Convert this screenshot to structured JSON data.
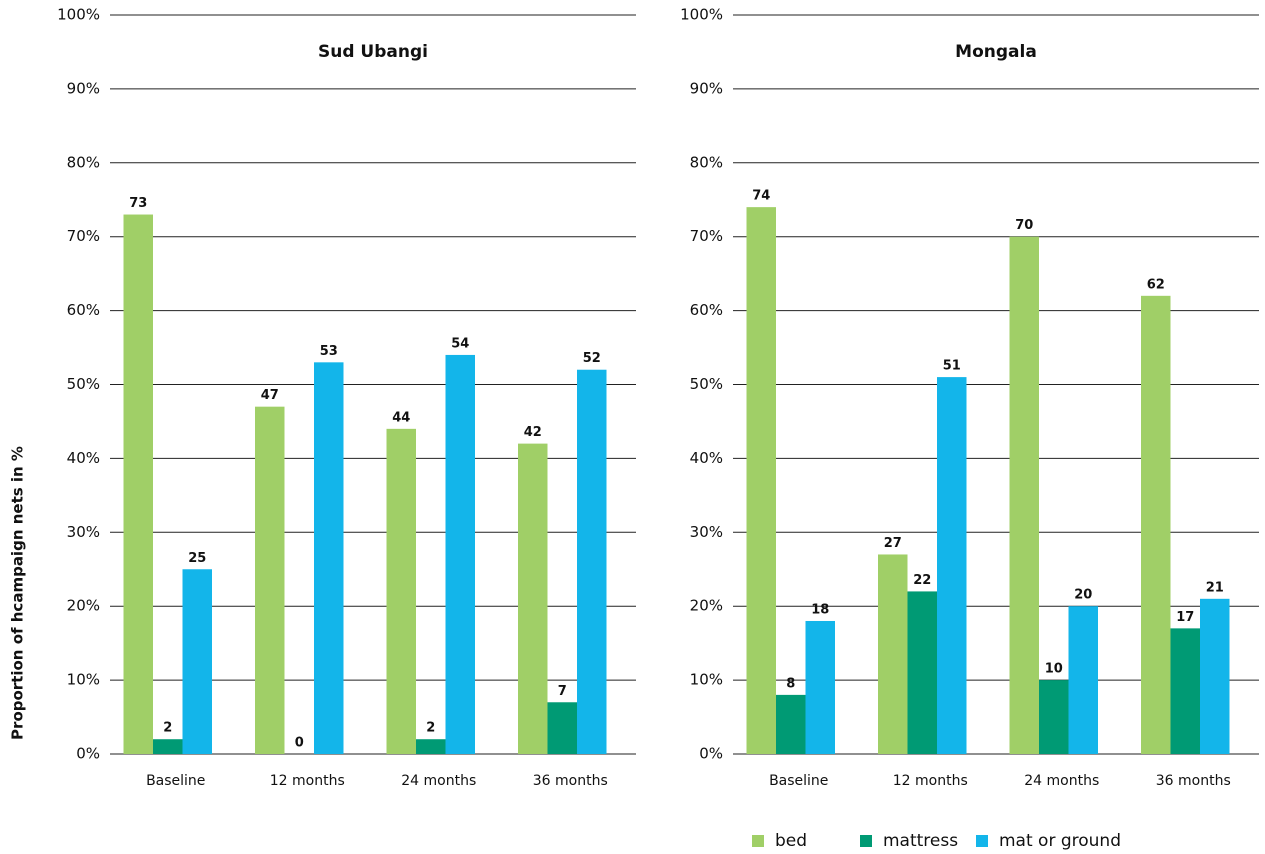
{
  "chart_data": [
    {
      "type": "bar",
      "title": "Sud Ubangi",
      "ylabel": "Proportion of hcampaign nets in %",
      "categories": [
        "Baseline",
        "12 months",
        "24 months",
        "36 months"
      ],
      "series": [
        {
          "color": "#a0cf67",
          "values": [
            73,
            47,
            44,
            42
          ]
        },
        {
          "color": "#009a74",
          "values": [
            2,
            0,
            2,
            7
          ]
        },
        {
          "color": "#13b5ea",
          "values": [
            25,
            53,
            54,
            52
          ]
        }
      ],
      "ylim": [
        0,
        100
      ],
      "yticks": [
        {
          "value": 0,
          "label": "0%"
        },
        {
          "value": 10,
          "label": "10%"
        },
        {
          "value": 20,
          "label": "20%"
        },
        {
          "value": 30,
          "label": "30%"
        },
        {
          "value": 40,
          "label": "40%"
        },
        {
          "value": 50,
          "label": "50%"
        },
        {
          "value": 60,
          "label": "60%"
        },
        {
          "value": 70,
          "label": "70%"
        },
        {
          "value": 80,
          "label": "80%"
        },
        {
          "value": 90,
          "label": "90%"
        },
        {
          "value": 100,
          "label": "100%"
        }
      ],
      "grid": true
    },
    {
      "type": "bar",
      "title": "Mongala",
      "categories": [
        "Baseline",
        "12 months",
        "24 months",
        "36 months"
      ],
      "series": [
        {
          "name": "bed",
          "color": "#a0cf67",
          "values": [
            74,
            27,
            70,
            62
          ]
        },
        {
          "name": "mattress",
          "color": "#009a74",
          "values": [
            8,
            22,
            10,
            17
          ]
        },
        {
          "name": "mat or ground",
          "color": "#13b5ea",
          "values": [
            18,
            51,
            20,
            21
          ]
        }
      ],
      "ylim": [
        0,
        100
      ],
      "yticks": [
        {
          "value": 0,
          "label": "0%"
        },
        {
          "value": 10,
          "label": "10%"
        },
        {
          "value": 20,
          "label": "20%"
        },
        {
          "value": 30,
          "label": "30%"
        },
        {
          "value": 40,
          "label": "40%"
        },
        {
          "value": 50,
          "label": "50%"
        },
        {
          "value": 60,
          "label": "60%"
        },
        {
          "value": 70,
          "label": "70%"
        },
        {
          "value": 80,
          "label": "80%"
        },
        {
          "value": 90,
          "label": "90%"
        },
        {
          "value": 100,
          "label": "100%"
        }
      ],
      "grid": true,
      "legend": "bottom-right"
    }
  ]
}
